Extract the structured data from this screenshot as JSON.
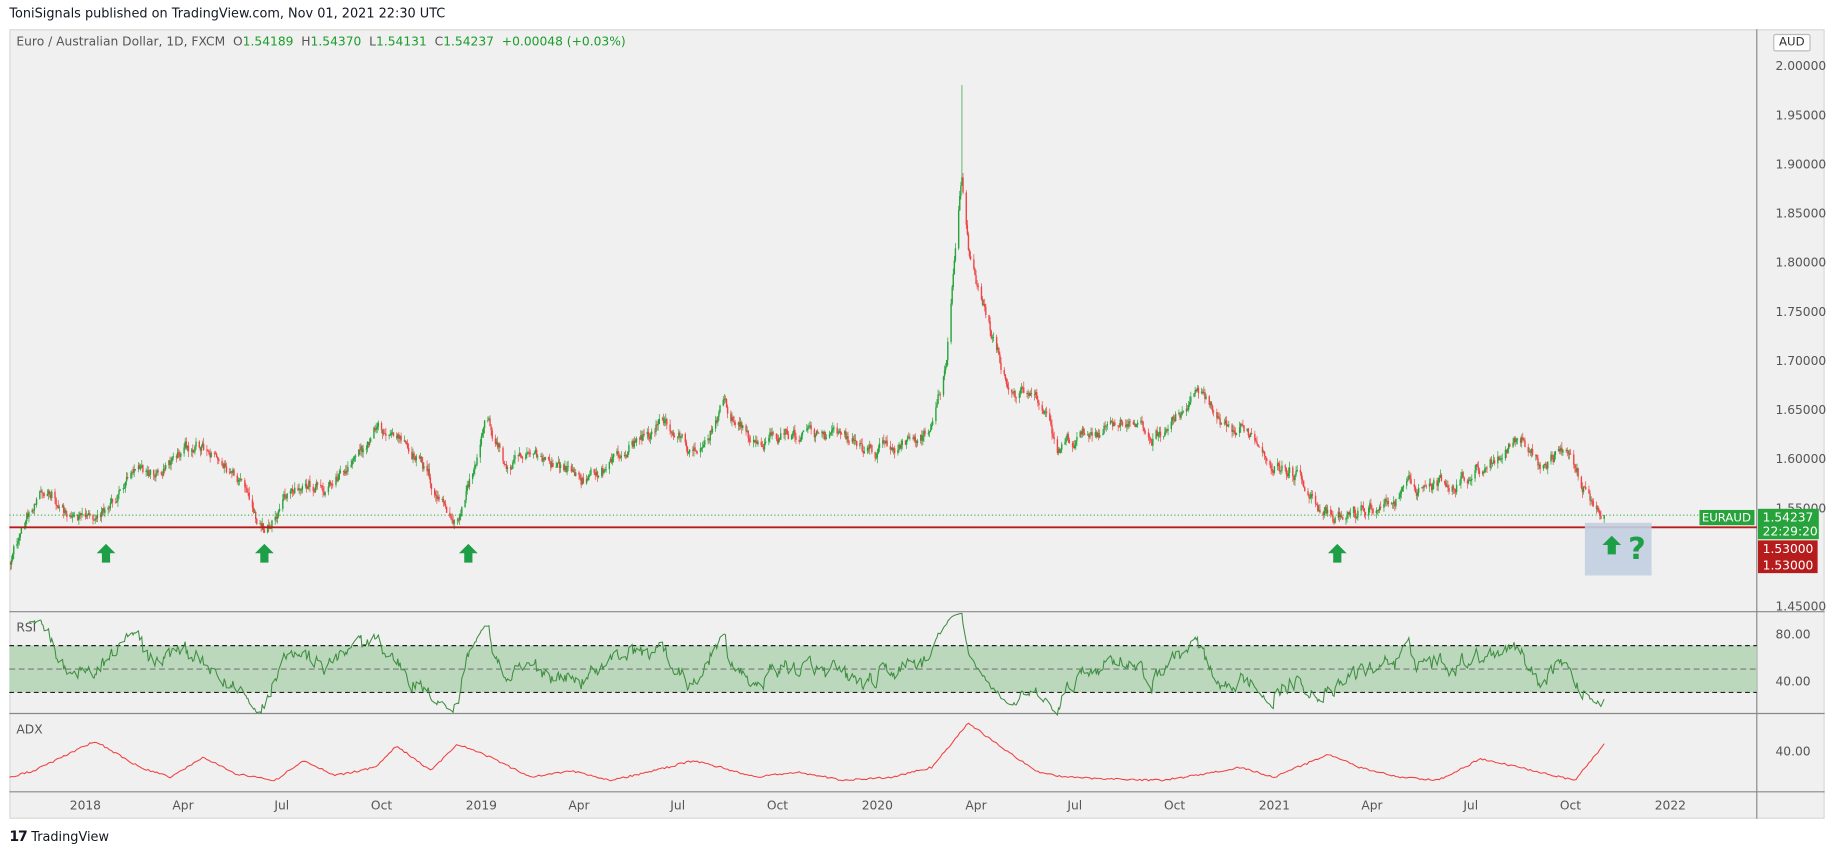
{
  "publisher_line": "ToniSignals published on TradingView.com, Nov 01, 2021 22:30 UTC",
  "legend": {
    "symbol": "Euro / Australian Dollar, 1D, FXCM",
    "o_label": "O",
    "o": "1.54189",
    "h_label": "H",
    "h": "1.54370",
    "l_label": "L",
    "l": "1.54131",
    "c_label": "C",
    "c": "1.54237",
    "change": "+0.00048 (+0.03%)"
  },
  "currency": "AUD",
  "price_tag": {
    "symbol": "EURAUD",
    "price": "1.54237",
    "countdown": "22:29:20"
  },
  "level_tags": [
    "1.53000",
    "1.53000"
  ],
  "footer": {
    "logo_text": "TradingView"
  },
  "colors": {
    "up": "#26a33a",
    "down": "#ef4444",
    "level": "#b71c1c",
    "rsi": "#3e8e41",
    "rsi_band": "#bcd8bc",
    "adx": "#f04040",
    "arrow": "#1e9e46",
    "highlight": "#c2cfe0"
  },
  "icons": [
    "up-arrow-icon",
    "question-mark-icon",
    "tradingview-logo-icon"
  ],
  "chart_data": [
    {
      "type": "candlestick",
      "title": "Euro / Australian Dollar, 1D, FXCM",
      "y_ticks": [
        "2.00000",
        "1.95000",
        "1.90000",
        "1.85000",
        "1.80000",
        "1.75000",
        "1.70000",
        "1.65000",
        "1.60000",
        "1.55000",
        "1.45000"
      ],
      "ylim": [
        1.45,
        2.0
      ],
      "x_ticks": [
        "2018",
        "Apr",
        "Jul",
        "Oct",
        "2019",
        "Apr",
        "Jul",
        "Oct",
        "2020",
        "Apr",
        "Jul",
        "Oct",
        "2021",
        "Apr",
        "Jul",
        "Oct",
        "2022"
      ],
      "x_tick_dates": [
        "2018-01-01",
        "2018-04-01",
        "2018-07-01",
        "2018-10-01",
        "2019-01-01",
        "2019-04-01",
        "2019-07-01",
        "2019-10-01",
        "2020-01-01",
        "2020-04-01",
        "2020-07-01",
        "2020-10-01",
        "2021-01-01",
        "2021-04-01",
        "2021-07-01",
        "2021-10-01",
        "2022-01-01"
      ],
      "approx_close_path": [
        [
          "2017-10-23",
          1.5
        ],
        [
          "2017-11-10",
          1.543
        ],
        [
          "2017-12-01",
          1.567
        ],
        [
          "2017-12-20",
          1.537
        ],
        [
          "2018-01-15",
          1.537
        ],
        [
          "2018-02-10",
          1.578
        ],
        [
          "2018-03-10",
          1.585
        ],
        [
          "2018-04-10",
          1.614
        ],
        [
          "2018-05-01",
          1.596
        ],
        [
          "2018-05-25",
          1.578
        ],
        [
          "2018-06-15",
          1.531
        ],
        [
          "2018-07-10",
          1.578
        ],
        [
          "2018-08-10",
          1.567
        ],
        [
          "2018-09-10",
          1.596
        ],
        [
          "2018-09-25",
          1.629
        ],
        [
          "2018-10-25",
          1.62
        ],
        [
          "2018-11-20",
          1.567
        ],
        [
          "2018-12-10",
          1.537
        ],
        [
          "2018-12-28",
          1.602
        ],
        [
          "2019-01-05",
          1.638
        ],
        [
          "2019-01-25",
          1.59
        ],
        [
          "2019-03-01",
          1.602
        ],
        [
          "2019-04-10",
          1.578
        ],
        [
          "2019-05-20",
          1.614
        ],
        [
          "2019-06-20",
          1.638
        ],
        [
          "2019-07-20",
          1.596
        ],
        [
          "2019-08-10",
          1.656
        ],
        [
          "2019-09-10",
          1.614
        ],
        [
          "2019-10-10",
          1.626
        ],
        [
          "2019-11-10",
          1.62
        ],
        [
          "2019-12-10",
          1.614
        ],
        [
          "2019-12-31",
          1.602
        ],
        [
          "2020-01-25",
          1.614
        ],
        [
          "2020-02-20",
          1.626
        ],
        [
          "2020-03-05",
          1.698
        ],
        [
          "2020-03-19",
          1.888
        ],
        [
          "2020-03-25",
          1.817
        ],
        [
          "2020-04-10",
          1.745
        ],
        [
          "2020-05-01",
          1.674
        ],
        [
          "2020-06-01",
          1.65
        ],
        [
          "2020-06-15",
          1.608
        ],
        [
          "2020-07-15",
          1.626
        ],
        [
          "2020-08-15",
          1.644
        ],
        [
          "2020-09-10",
          1.62
        ],
        [
          "2020-10-05",
          1.644
        ],
        [
          "2020-10-25",
          1.668
        ],
        [
          "2020-11-15",
          1.62
        ],
        [
          "2020-12-10",
          1.626
        ],
        [
          "2021-01-05",
          1.596
        ],
        [
          "2021-02-01",
          1.573
        ],
        [
          "2021-02-25",
          1.531
        ],
        [
          "2021-03-15",
          1.543
        ],
        [
          "2021-04-15",
          1.555
        ],
        [
          "2021-05-15",
          1.573
        ],
        [
          "2021-06-15",
          1.578
        ],
        [
          "2021-07-15",
          1.596
        ],
        [
          "2021-08-15",
          1.626
        ],
        [
          "2021-09-01",
          1.596
        ],
        [
          "2021-09-25",
          1.614
        ],
        [
          "2021-10-10",
          1.578
        ],
        [
          "2021-11-01",
          1.54237
        ]
      ],
      "spike_high": [
        "2020-03-19",
        1.98
      ],
      "horizontal_level": 1.53,
      "last_price": 1.54237,
      "support_arrow_dates": [
        "2018-01-20",
        "2018-06-15",
        "2018-12-20",
        "2021-02-28"
      ],
      "annotation": "?"
    },
    {
      "type": "line",
      "name": "RSI",
      "y_ticks": [
        "80.00",
        "40.00"
      ],
      "band": [
        30,
        70
      ],
      "midline": 50
    },
    {
      "type": "line",
      "name": "ADX",
      "y_ticks": [
        "40.00"
      ],
      "points": [
        [
          "2017-10-23",
          24
        ],
        [
          "2017-11-15",
          28
        ],
        [
          "2018-01-10",
          46
        ],
        [
          "2018-02-20",
          30
        ],
        [
          "2018-03-20",
          24
        ],
        [
          "2018-04-20",
          36
        ],
        [
          "2018-05-20",
          26
        ],
        [
          "2018-06-25",
          22
        ],
        [
          "2018-07-20",
          34
        ],
        [
          "2018-08-20",
          25
        ],
        [
          "2018-09-25",
          30
        ],
        [
          "2018-10-15",
          43
        ],
        [
          "2018-11-15",
          28
        ],
        [
          "2018-12-10",
          44
        ],
        [
          "2019-01-10",
          36
        ],
        [
          "2019-02-15",
          24
        ],
        [
          "2019-03-25",
          28
        ],
        [
          "2019-05-01",
          22
        ],
        [
          "2019-06-10",
          28
        ],
        [
          "2019-07-15",
          34
        ],
        [
          "2019-08-10",
          30
        ],
        [
          "2019-09-10",
          24
        ],
        [
          "2019-10-20",
          27
        ],
        [
          "2019-12-01",
          22
        ],
        [
          "2020-01-15",
          24
        ],
        [
          "2020-02-20",
          30
        ],
        [
          "2020-03-25",
          57
        ],
        [
          "2020-04-25",
          42
        ],
        [
          "2020-05-25",
          28
        ],
        [
          "2020-06-20",
          24
        ],
        [
          "2020-08-01",
          23
        ],
        [
          "2020-09-20",
          22
        ],
        [
          "2020-10-30",
          26
        ],
        [
          "2020-12-01",
          30
        ],
        [
          "2021-01-01",
          24
        ],
        [
          "2021-02-20",
          38
        ],
        [
          "2021-03-20",
          30
        ],
        [
          "2021-04-25",
          24
        ],
        [
          "2021-06-01",
          22
        ],
        [
          "2021-07-10",
          35
        ],
        [
          "2021-08-15",
          30
        ],
        [
          "2021-09-10",
          26
        ],
        [
          "2021-10-05",
          22
        ],
        [
          "2021-11-01",
          44
        ]
      ]
    }
  ]
}
